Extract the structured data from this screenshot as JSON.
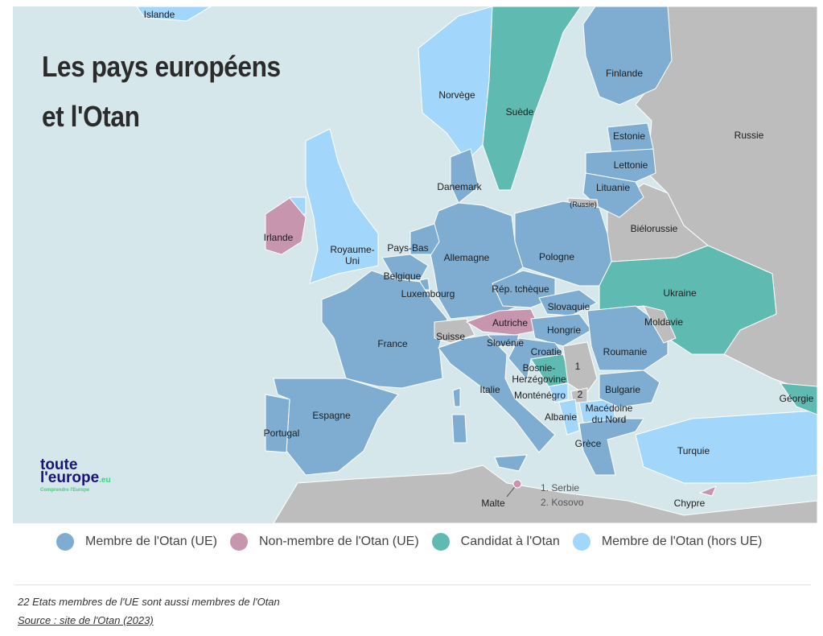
{
  "title_line1": "Les pays européens",
  "title_line2": "et l'Otan",
  "colors": {
    "sea": "#d6e7ec",
    "member_eu": "#7fadd2",
    "non_member_eu": "#c795ad",
    "candidate": "#5fbab1",
    "member_non_eu": "#a3d6fb",
    "other": "#bdbdbd"
  },
  "countries": {
    "islande": {
      "label": "Islande",
      "status": "member_non_eu"
    },
    "norvege": {
      "label": "Norvège",
      "status": "member_non_eu"
    },
    "suede": {
      "label": "Suède",
      "status": "candidate"
    },
    "finlande": {
      "label": "Finlande",
      "status": "member_eu"
    },
    "russie": {
      "label": "Russie",
      "status": "other"
    },
    "estonie": {
      "label": "Estonie",
      "status": "member_eu"
    },
    "lettonie": {
      "label": "Lettonie",
      "status": "member_eu"
    },
    "lituanie": {
      "label": "Lituanie",
      "status": "member_eu"
    },
    "kaliningrad": {
      "label": "(Russie)",
      "status": "other"
    },
    "danemark": {
      "label": "Danemark",
      "status": "member_eu"
    },
    "irlande": {
      "label": "Irlande",
      "status": "non_member_eu"
    },
    "royaume_uni": {
      "label": "Royaume-\nUni",
      "status": "member_non_eu"
    },
    "pays_bas": {
      "label": "Pays-Bas",
      "status": "member_eu"
    },
    "allemagne": {
      "label": "Allemagne",
      "status": "member_eu"
    },
    "pologne": {
      "label": "Pologne",
      "status": "member_eu"
    },
    "bielorussie": {
      "label": "Biélorussie",
      "status": "other"
    },
    "belgique": {
      "label": "Belgique",
      "status": "member_eu"
    },
    "luxembourg": {
      "label": "Luxembourg",
      "status": "member_eu"
    },
    "rep_tcheque": {
      "label": "Rép. tchèque",
      "status": "member_eu"
    },
    "slovaquie": {
      "label": "Slovaquie",
      "status": "member_eu"
    },
    "ukraine": {
      "label": "Ukraine",
      "status": "candidate"
    },
    "france": {
      "label": "France",
      "status": "member_eu"
    },
    "suisse": {
      "label": "Suisse",
      "status": "other"
    },
    "autriche": {
      "label": "Autriche",
      "status": "non_member_eu"
    },
    "hongrie": {
      "label": "Hongrie",
      "status": "member_eu"
    },
    "moldavie": {
      "label": "Moldavie",
      "status": "other"
    },
    "slovenie": {
      "label": "Slovénie",
      "status": "member_eu"
    },
    "croatie": {
      "label": "Croatie",
      "status": "member_eu"
    },
    "roumanie": {
      "label": "Roumanie",
      "status": "member_eu"
    },
    "bosnie": {
      "label": "Bosnie-\nHerzégovine",
      "status": "candidate"
    },
    "serbie": {
      "label": "1",
      "status": "other"
    },
    "kosovo": {
      "label": "2",
      "status": "other"
    },
    "montenegro": {
      "label": "Monténégro",
      "status": "member_non_eu"
    },
    "italie": {
      "label": "Italie",
      "status": "member_eu"
    },
    "bulgarie": {
      "label": "Bulgarie",
      "status": "member_eu"
    },
    "albanie": {
      "label": "Albanie",
      "status": "member_non_eu"
    },
    "macedoine": {
      "label": "Macédoine\ndu Nord",
      "status": "member_non_eu"
    },
    "georgie": {
      "label": "Géorgie",
      "status": "candidate"
    },
    "espagne": {
      "label": "Espagne",
      "status": "member_eu"
    },
    "portugal": {
      "label": "Portugal",
      "status": "member_eu"
    },
    "grece": {
      "label": "Grèce",
      "status": "member_eu"
    },
    "turquie": {
      "label": "Turquie",
      "status": "member_non_eu"
    },
    "malte": {
      "label": "Malte",
      "status": "non_member_eu"
    },
    "chypre": {
      "label": "Chypre",
      "status": "non_member_eu"
    }
  },
  "map_note": [
    "1. Serbie",
    "2. Kosovo"
  ],
  "legend": [
    {
      "label": "Membre de l'Otan (UE)",
      "color": "#7fadd2"
    },
    {
      "label": "Non-membre de l'Otan (UE)",
      "color": "#c795ad"
    },
    {
      "label": "Candidat à l'Otan",
      "color": "#5fbab1"
    },
    {
      "label": "Membre de l'Otan (hors UE)",
      "color": "#a3d6fb"
    }
  ],
  "logo": {
    "line1": "toute",
    "line2": "l'europe",
    "suffix": ".eu",
    "tagline": "Comprendre l'Europe"
  },
  "footer": {
    "note": "22 Etats membres de l'UE sont aussi membres de l'Otan",
    "source": "Source : site de l'Otan (2023)"
  }
}
